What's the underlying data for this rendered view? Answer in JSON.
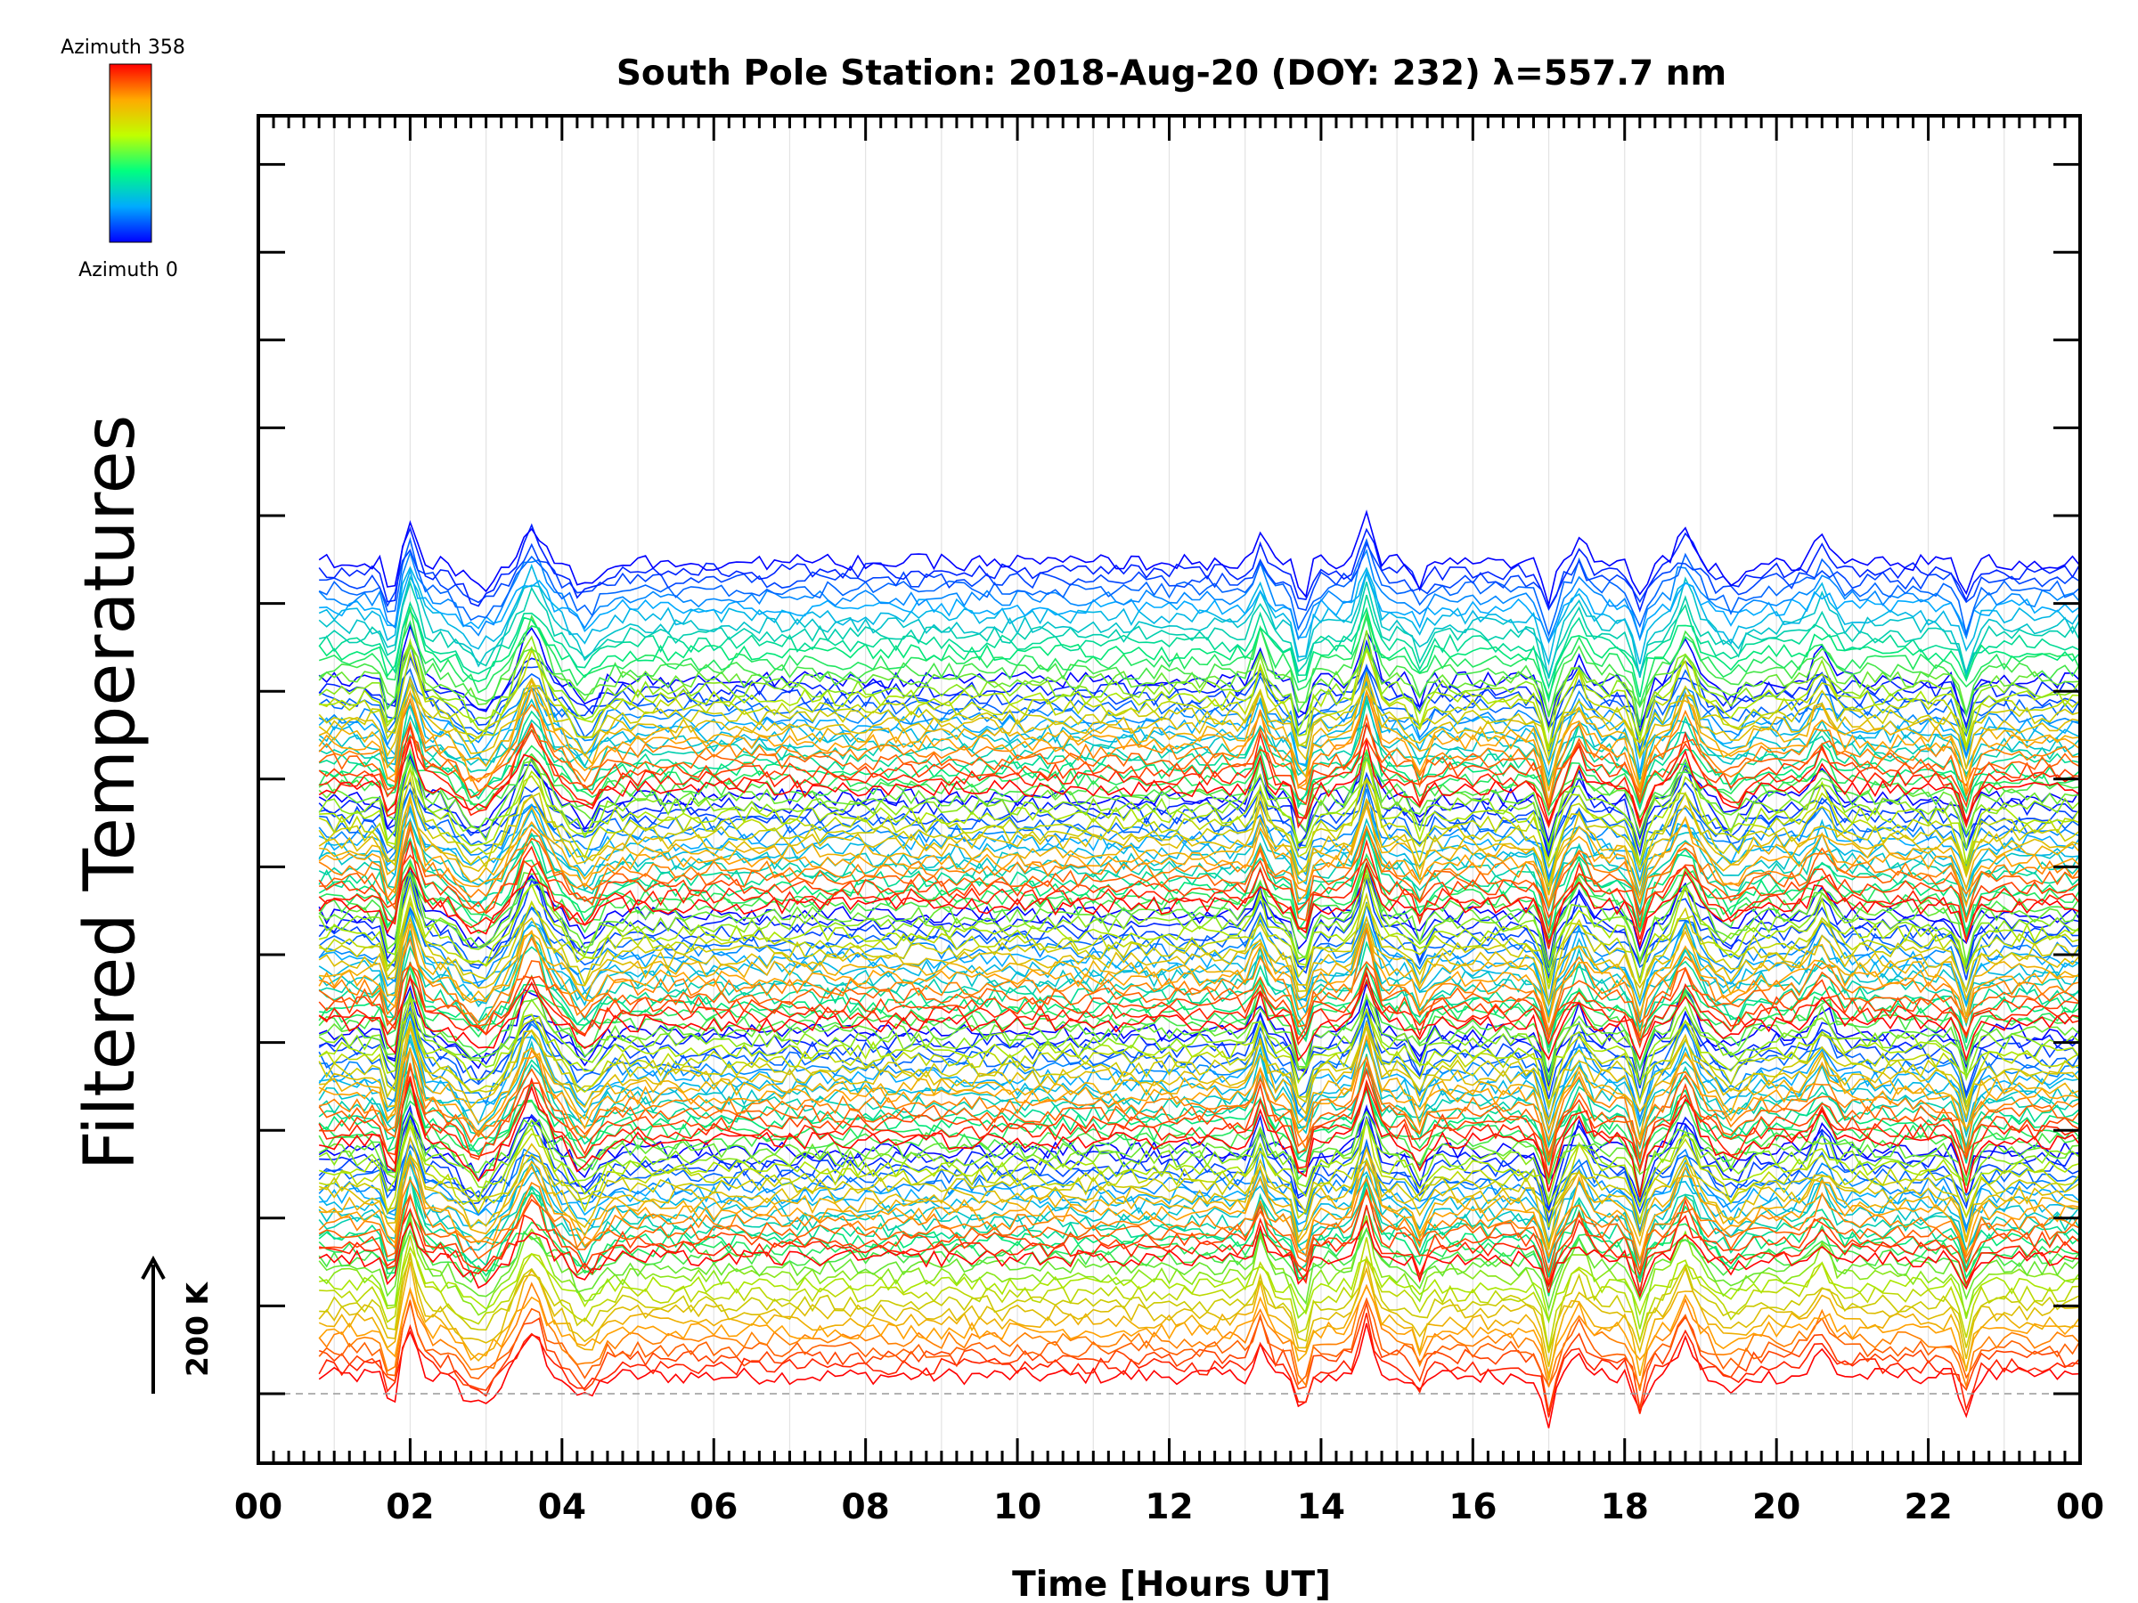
{
  "chart_data": {
    "type": "line",
    "title": "South Pole Station: 2018-Aug-20 (DOY: 232) λ=557.7 nm",
    "xlabel": "Time [Hours UT]",
    "ylabel": "Filtered Temperatures",
    "xlim": [
      0,
      24
    ],
    "x_ticks": [
      "00",
      "02",
      "04",
      "06",
      "08",
      "10",
      "12",
      "14",
      "16",
      "18",
      "20",
      "22",
      "00"
    ],
    "x_tick_values": [
      0,
      2,
      4,
      6,
      8,
      10,
      12,
      14,
      16,
      18,
      20,
      22,
      24
    ],
    "scale_bar": {
      "label": "200 K",
      "value": 200
    },
    "colorbar": {
      "top_label": "Azimuth 358",
      "bottom_label": "Azimuth 0",
      "min": 0,
      "max": 358
    },
    "series_groups": 6,
    "series_per_group": 26,
    "series_spacing_K": 14,
    "group_spacing_K": 400,
    "time_range_hours": [
      0.8,
      24.0
    ],
    "sample_interval_hours": 0.1
  },
  "colors": {
    "low_azimuth": "#0000ff",
    "high_azimuth": "#ff0000",
    "axis": "#000000",
    "grid": "#cccccc"
  }
}
